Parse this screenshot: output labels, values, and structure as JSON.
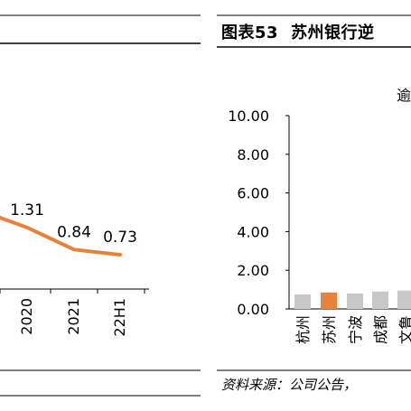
{
  "right_panel": {
    "figure_label": "图表53",
    "title": "苏州银行逆",
    "legend_fragment": "逾",
    "source": "资料来源：公司公告，"
  },
  "colors": {
    "line": "#E8823A",
    "bar_default": "#C8C8C8",
    "bar_highlight": "#E8823A",
    "axis": "#000000"
  },
  "chart_data": [
    {
      "type": "line",
      "categories": [
        "2020",
        "2021",
        "22H1"
      ],
      "series": [
        {
          "values": [
            1.31,
            0.84,
            0.73
          ]
        }
      ],
      "data_labels": [
        "1.31",
        "0.84",
        "0.73"
      ],
      "partial": true
    },
    {
      "type": "bar",
      "categories": [
        "杭州",
        "苏州",
        "宁波",
        "成都",
        "文鲁"
      ],
      "values": [
        0.75,
        0.85,
        0.8,
        0.9,
        0.95
      ],
      "highlight": "苏州",
      "ylim": [
        0,
        10
      ],
      "yticks": [
        "0.00",
        "2.00",
        "4.00",
        "6.00",
        "8.00",
        "10.00"
      ],
      "partial": true
    }
  ]
}
